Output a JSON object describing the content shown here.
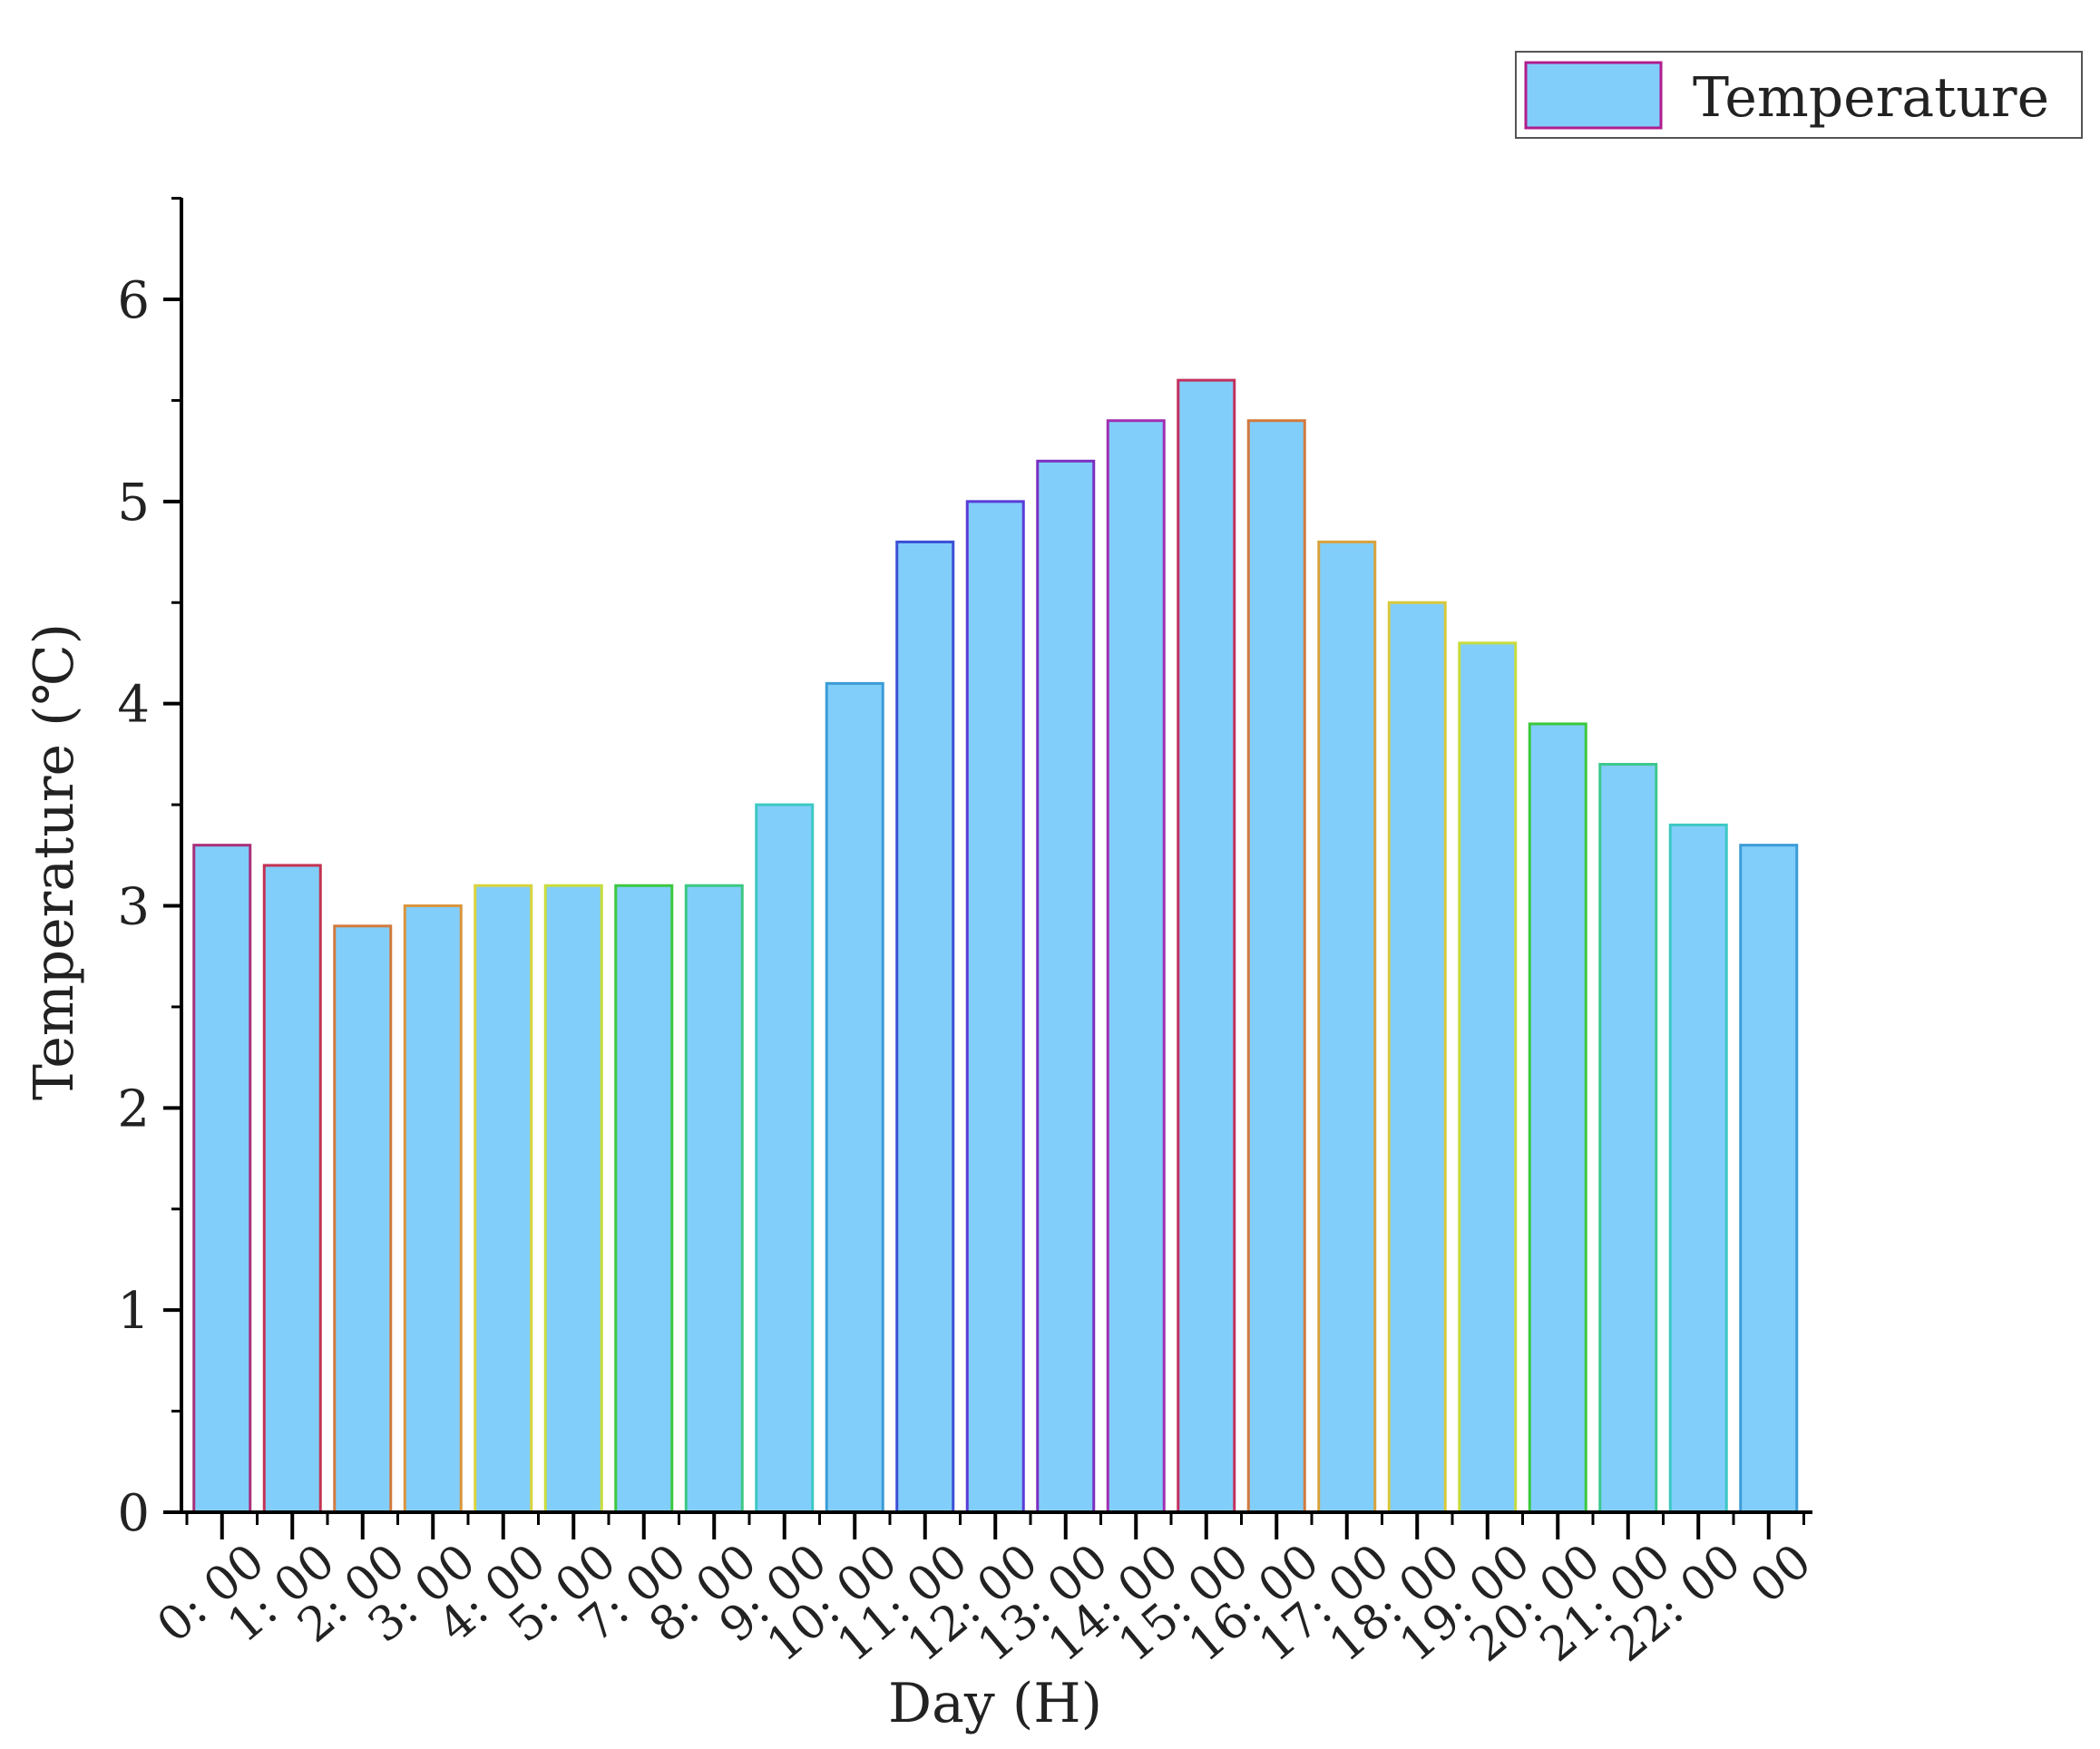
{
  "chart_data": {
    "type": "bar",
    "categories": [
      "0: 00",
      "1: 00",
      "2: 00",
      "3: 00",
      "4: 00",
      "5: 00",
      "7: 00",
      "8: 00",
      "9: 00",
      "10: 00",
      "11: 00",
      "12: 00",
      "13: 00",
      "14: 00",
      "15: 00",
      "16: 00",
      "17: 00",
      "18: 00",
      "19: 00",
      "20: 00",
      "21: 00",
      "22: 00",
      "00"
    ],
    "series": [
      {
        "name": "Temperature",
        "values": [
          3.3,
          3.2,
          2.9,
          3.0,
          3.1,
          3.1,
          3.1,
          3.1,
          3.5,
          4.1,
          4.8,
          5.0,
          5.2,
          5.4,
          5.6,
          5.4,
          4.8,
          4.5,
          4.3,
          3.9,
          3.7,
          3.4,
          3.3
        ]
      }
    ],
    "title": "",
    "xlabel": "Day (H)",
    "ylabel": "Temperature (℃)",
    "ylim": [
      0,
      6.5
    ],
    "yticks": [
      "0",
      "1",
      "2",
      "3",
      "4",
      "5",
      "6"
    ],
    "legend": {
      "position": "top-right",
      "label": "Temperature"
    },
    "grid": false,
    "colors": {
      "bar_fill": "#82CEFA",
      "axis": "#000000",
      "legend_border": "#B01C8E",
      "bar_edges": [
        "#A8307A",
        "#C33252",
        "#D27A3E",
        "#D9953C",
        "#D9D33C",
        "#C9DC3C",
        "#3CC83E",
        "#3CC882",
        "#3CC8C3",
        "#3C9BD6",
        "#3C4FD6",
        "#5A3CD6",
        "#7A2FC0",
        "#A02FB0",
        "#C3305E",
        "#D27A3E",
        "#D9A23C",
        "#D9C83C",
        "#C8DC3C",
        "#3CC83E",
        "#3CC88C",
        "#3CC8C3",
        "#3C9BD6"
      ]
    }
  }
}
